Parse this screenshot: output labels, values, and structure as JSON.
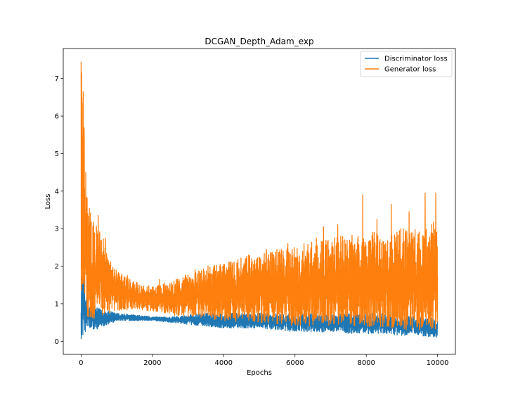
{
  "chart_data": {
    "type": "line",
    "title": "DCGAN_Depth_Adam_exp",
    "xlabel": "Epochs",
    "ylabel": "Loss",
    "xlim": [
      -500,
      10500
    ],
    "ylim": [
      -0.35,
      7.8
    ],
    "xticks": [
      0,
      2000,
      4000,
      6000,
      8000,
      10000
    ],
    "xtick_labels": [
      "0",
      "2000",
      "4000",
      "6000",
      "8000",
      "10000"
    ],
    "yticks": [
      0,
      1,
      2,
      3,
      4,
      5,
      6,
      7
    ],
    "ytick_labels": [
      "0",
      "1",
      "2",
      "3",
      "4",
      "5",
      "6",
      "7"
    ],
    "grid": false,
    "legend_position": "top-right",
    "series": [
      {
        "name": "Discriminator loss",
        "color": "#1f77b4",
        "x": [
          0,
          50,
          100,
          150,
          200,
          300,
          400,
          600,
          800,
          1000,
          1500,
          2000,
          2500,
          3000,
          3500,
          4000,
          4500,
          5000,
          5500,
          6000,
          6500,
          7000,
          7500,
          8000,
          8500,
          9000,
          9500,
          10000
        ],
        "min": [
          0.05,
          0.1,
          0.2,
          0.35,
          0.35,
          0.3,
          0.3,
          0.4,
          0.45,
          0.55,
          0.55,
          0.55,
          0.5,
          0.45,
          0.4,
          0.35,
          0.35,
          0.35,
          0.3,
          0.25,
          0.25,
          0.25,
          0.2,
          0.2,
          0.2,
          0.15,
          0.15,
          0.1
        ],
        "max": [
          1.6,
          2.25,
          1.5,
          1.2,
          1.0,
          0.95,
          0.9,
          0.85,
          0.8,
          0.75,
          0.7,
          0.65,
          0.65,
          0.7,
          0.75,
          0.75,
          0.75,
          0.75,
          0.75,
          0.75,
          0.75,
          0.75,
          0.75,
          0.75,
          0.75,
          0.7,
          0.65,
          0.6
        ]
      },
      {
        "name": "Generator loss",
        "color": "#ff7f0e",
        "x": [
          0,
          50,
          100,
          150,
          200,
          300,
          400,
          600,
          800,
          1000,
          1500,
          2000,
          2500,
          3000,
          3500,
          4000,
          4500,
          5000,
          5500,
          6000,
          6500,
          7000,
          7500,
          8000,
          8500,
          9000,
          9500,
          10000
        ],
        "min": [
          0.5,
          1.5,
          1.0,
          0.7,
          0.6,
          0.6,
          0.6,
          0.7,
          0.7,
          0.8,
          0.85,
          0.8,
          0.7,
          0.65,
          0.6,
          0.55,
          0.5,
          0.5,
          0.45,
          0.4,
          0.4,
          0.4,
          0.35,
          0.35,
          0.3,
          0.3,
          0.3,
          0.3
        ],
        "max": [
          7.45,
          6.6,
          5.4,
          4.5,
          3.8,
          3.3,
          3.2,
          2.8,
          2.3,
          1.9,
          1.6,
          1.45,
          1.6,
          1.8,
          2.0,
          2.1,
          2.25,
          2.35,
          2.45,
          2.55,
          2.65,
          2.75,
          2.85,
          2.9,
          2.95,
          3.0,
          3.1,
          3.2
        ],
        "peaks": [
          [
            0,
            7.45
          ],
          [
            30,
            6.35
          ],
          [
            60,
            6.65
          ],
          [
            90,
            5.35
          ],
          [
            130,
            4.5
          ],
          [
            170,
            3.8
          ],
          [
            480,
            3.35
          ],
          [
            680,
            2.75
          ],
          [
            1300,
            1.75
          ],
          [
            2200,
            1.65
          ],
          [
            3200,
            1.9
          ],
          [
            3900,
            2.05
          ],
          [
            4700,
            2.3
          ],
          [
            5200,
            2.45
          ],
          [
            5800,
            2.6
          ],
          [
            6600,
            2.75
          ],
          [
            6800,
            3.05
          ],
          [
            7200,
            3.1
          ],
          [
            7900,
            3.9
          ],
          [
            8300,
            3.25
          ],
          [
            8700,
            3.65
          ],
          [
            9200,
            3.45
          ],
          [
            9650,
            3.95
          ],
          [
            9950,
            3.95
          ]
        ]
      }
    ]
  }
}
